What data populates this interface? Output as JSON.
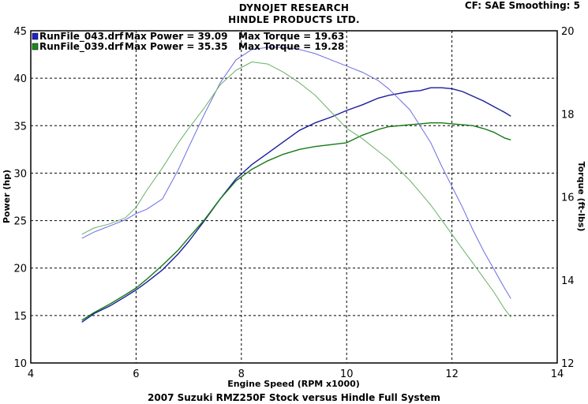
{
  "header": {
    "line1": "DYNOJET RESEARCH",
    "line2": "HINDLE PRODUCTS LTD.",
    "cf_info": "CF: SAE  Smoothing: 5"
  },
  "footer": "2007 Suzuki RMZ250F Stock versus Hindle Full System",
  "chart_data": {
    "type": "line",
    "title": "",
    "xlabel": "Engine Speed (RPM x1000)",
    "ylabel_left": "Power (hp)",
    "ylabel_right": "Torque (ft-lbs)",
    "xlim": [
      4,
      14
    ],
    "ylim_left": [
      10,
      45
    ],
    "ylim_right": [
      12,
      20
    ],
    "xticks": [
      "4",
      "6",
      "8",
      "10",
      "12",
      "14"
    ],
    "yticks_left": [
      "10",
      "15",
      "20",
      "25",
      "30",
      "35",
      "40",
      "45"
    ],
    "yticks_right": [
      "12",
      "14",
      "16",
      "18",
      "20"
    ],
    "grid": true,
    "legend": [
      {
        "file": "RunFile_043.drf",
        "power_text": "Max Power = 39.09",
        "torque_text": "Max Torque = 19.63",
        "color": "#2020c8"
      },
      {
        "file": "RunFile_039.drf",
        "power_text": "Max Power = 35.35",
        "torque_text": "Max Torque = 19.28",
        "color": "#1a8a1a"
      }
    ],
    "series": [
      {
        "name": "RunFile_043.drf",
        "quantity": "power",
        "axis": "left",
        "color": "#1c1c9c",
        "x": [
          4.97,
          5.2,
          5.5,
          5.8,
          6.0,
          6.2,
          6.5,
          6.8,
          7.0,
          7.3,
          7.6,
          7.9,
          8.2,
          8.5,
          8.8,
          9.1,
          9.4,
          9.7,
          10.0,
          10.3,
          10.6,
          10.8,
          11.0,
          11.2,
          11.4,
          11.6,
          11.8,
          12.0,
          12.2,
          12.4,
          12.6,
          12.8,
          13.0,
          13.12
        ],
        "y": [
          14.3,
          15.2,
          16.0,
          17.0,
          17.7,
          18.5,
          19.8,
          21.5,
          22.8,
          25.0,
          27.3,
          29.4,
          30.9,
          32.1,
          33.3,
          34.5,
          35.3,
          35.9,
          36.6,
          37.2,
          37.9,
          38.2,
          38.4,
          38.6,
          38.7,
          39.0,
          39.0,
          38.9,
          38.6,
          38.1,
          37.6,
          37.0,
          36.4,
          36.0
        ]
      },
      {
        "name": "RunFile_039.drf",
        "quantity": "power",
        "axis": "left",
        "color": "#147a14",
        "x": [
          4.97,
          5.2,
          5.5,
          5.8,
          6.0,
          6.2,
          6.5,
          6.8,
          7.0,
          7.3,
          7.6,
          7.9,
          8.2,
          8.5,
          8.8,
          9.1,
          9.4,
          9.7,
          10.0,
          10.3,
          10.6,
          10.8,
          11.0,
          11.2,
          11.4,
          11.6,
          11.8,
          12.0,
          12.2,
          12.4,
          12.6,
          12.8,
          13.0,
          13.12
        ],
        "y": [
          14.5,
          15.3,
          16.2,
          17.2,
          17.9,
          18.8,
          20.3,
          21.9,
          23.2,
          25.1,
          27.3,
          29.2,
          30.4,
          31.3,
          32.0,
          32.5,
          32.8,
          33.0,
          33.2,
          34.0,
          34.6,
          34.9,
          35.0,
          35.1,
          35.2,
          35.3,
          35.3,
          35.2,
          35.1,
          35.0,
          34.7,
          34.3,
          33.7,
          33.5
        ]
      },
      {
        "name": "RunFile_043.drf",
        "quantity": "torque",
        "axis": "right",
        "color": "#6c6ce0",
        "x": [
          4.97,
          5.2,
          5.5,
          5.8,
          6.0,
          6.2,
          6.5,
          6.8,
          7.0,
          7.3,
          7.6,
          7.9,
          8.2,
          8.5,
          8.8,
          9.1,
          9.4,
          9.7,
          10.0,
          10.3,
          10.6,
          10.8,
          11.0,
          11.2,
          11.4,
          11.6,
          11.8,
          12.0,
          12.2,
          12.4,
          12.6,
          12.8,
          13.0,
          13.12
        ],
        "y": [
          15.0,
          15.15,
          15.3,
          15.45,
          15.6,
          15.7,
          15.95,
          16.65,
          17.2,
          18.0,
          18.75,
          19.3,
          19.55,
          19.6,
          19.6,
          19.55,
          19.45,
          19.3,
          19.15,
          19.0,
          18.8,
          18.6,
          18.35,
          18.1,
          17.7,
          17.3,
          16.75,
          16.25,
          15.75,
          15.2,
          14.7,
          14.25,
          13.8,
          13.55
        ]
      },
      {
        "name": "RunFile_039.drf",
        "quantity": "torque",
        "axis": "right",
        "color": "#6ab06a",
        "x": [
          4.97,
          5.2,
          5.5,
          5.8,
          6.0,
          6.2,
          6.5,
          6.8,
          7.0,
          7.3,
          7.6,
          7.9,
          8.2,
          8.5,
          8.8,
          9.1,
          9.4,
          9.7,
          10.0,
          10.3,
          10.6,
          10.8,
          11.0,
          11.2,
          11.4,
          11.6,
          11.8,
          12.0,
          12.2,
          12.4,
          12.6,
          12.8,
          13.0,
          13.12
        ],
        "y": [
          15.1,
          15.25,
          15.35,
          15.5,
          15.75,
          16.15,
          16.7,
          17.3,
          17.65,
          18.15,
          18.7,
          19.05,
          19.25,
          19.2,
          19.0,
          18.75,
          18.45,
          18.05,
          17.65,
          17.4,
          17.1,
          16.9,
          16.65,
          16.4,
          16.1,
          15.8,
          15.45,
          15.1,
          14.75,
          14.4,
          14.05,
          13.7,
          13.3,
          13.1
        ]
      }
    ]
  }
}
